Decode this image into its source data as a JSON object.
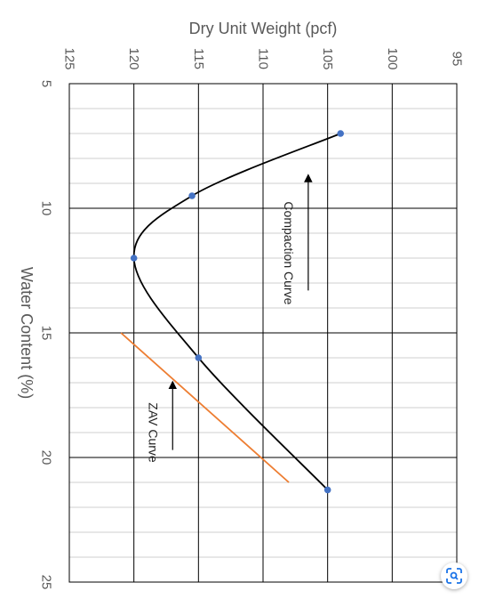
{
  "chart_data": {
    "type": "scatter",
    "orientation": "rotated-90-clockwise",
    "title": "",
    "xlabel": "Water Content (%)",
    "ylabel": "Dry Unit Weight (pcf)",
    "xlim": [
      5,
      25
    ],
    "ylim": [
      95,
      125
    ],
    "x_ticks": [
      "5",
      "10",
      "15",
      "20",
      "25"
    ],
    "y_ticks": [
      "95",
      "100",
      "105",
      "110",
      "115",
      "120",
      "125"
    ],
    "minor_x_step": 1,
    "grid": true,
    "series": [
      {
        "name": "",
        "role": "compaction-points",
        "color": "#4472C4",
        "x": [
          7.0,
          9.5,
          12.0,
          16.0,
          21.3
        ],
        "y": [
          104.0,
          115.5,
          120.0,
          115.0,
          105.0
        ]
      },
      {
        "name": "",
        "role": "compaction-curve",
        "color": "#000000",
        "x": [
          7.0,
          9.5,
          12.0,
          16.0,
          21.3
        ],
        "y": [
          104.0,
          115.5,
          120.0,
          115.0,
          105.0
        ]
      },
      {
        "name": "",
        "role": "zav-line",
        "color": "#ED7D31",
        "x": [
          15.0,
          21.0
        ],
        "y": [
          121.0,
          108.0
        ]
      }
    ],
    "annotations": [
      {
        "text": "Compaction Curve",
        "x": 13.3,
        "y": 106.5,
        "arrow_to": {
          "x": 8.7,
          "y": 106.5
        }
      },
      {
        "text": "ZAV Curve",
        "x": 19.7,
        "y": 117.0,
        "arrow_to": {
          "x": 17.0,
          "y": 117.0
        }
      }
    ]
  },
  "ui": {
    "lens_icon": "lens-scan-icon"
  }
}
